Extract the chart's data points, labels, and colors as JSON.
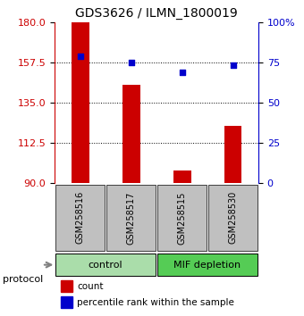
{
  "title": "GDS3626 / ILMN_1800019",
  "samples": [
    "GSM258516",
    "GSM258517",
    "GSM258515",
    "GSM258530"
  ],
  "bar_values": [
    180,
    145,
    97,
    122
  ],
  "percentile_values": [
    79,
    75,
    69,
    73
  ],
  "bar_color": "#cc0000",
  "dot_color": "#0000cc",
  "ymin": 90,
  "ymax": 180,
  "yticks_left": [
    90,
    112.5,
    135,
    157.5,
    180
  ],
  "yticks_right": [
    0,
    25,
    50,
    75,
    100
  ],
  "groups": [
    {
      "label": "control",
      "indices": [
        0,
        1
      ],
      "color": "#aaddaa"
    },
    {
      "label": "MIF depletion",
      "indices": [
        2,
        3
      ],
      "color": "#55cc55"
    }
  ],
  "group_label": "protocol",
  "legend_count_label": "count",
  "legend_pct_label": "percentile rank within the sample",
  "bg_color": "#ffffff",
  "tick_color_left": "#cc0000",
  "tick_color_right": "#0000cc",
  "bar_width": 0.35,
  "sample_bg_color": "#c0c0c0"
}
